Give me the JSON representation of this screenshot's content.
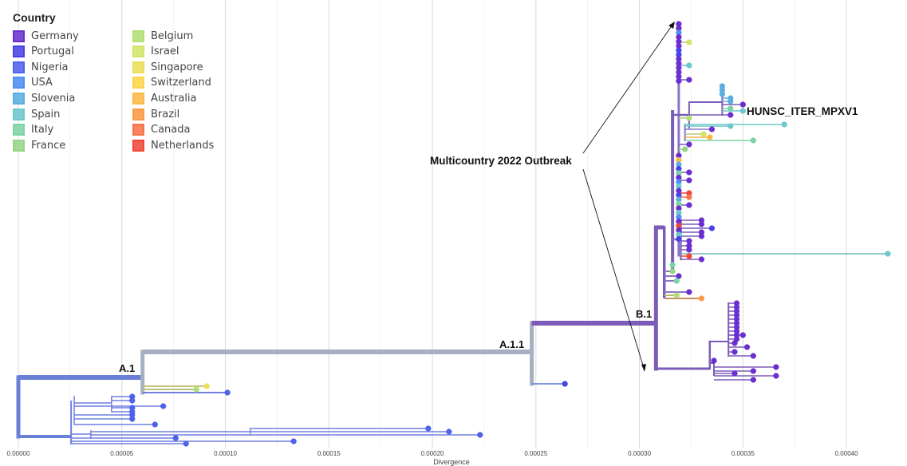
{
  "legend": {
    "title": "Country",
    "items": [
      {
        "label": "Germany",
        "color": "#6a2fd0"
      },
      {
        "label": "Portugal",
        "color": "#4a42e6"
      },
      {
        "label": "Nigeria",
        "color": "#4f62ea"
      },
      {
        "label": "USA",
        "color": "#4f8ef2"
      },
      {
        "label": "Slovenia",
        "color": "#5aaee0"
      },
      {
        "label": "Spain",
        "color": "#6cc8cc"
      },
      {
        "label": "Italy",
        "color": "#7ed3a6"
      },
      {
        "label": "France",
        "color": "#95d586"
      },
      {
        "label": "Belgium",
        "color": "#b2df74"
      },
      {
        "label": "Israel",
        "color": "#d3e467"
      },
      {
        "label": "Singapore",
        "color": "#eadf5a"
      },
      {
        "label": "Switzerland",
        "color": "#fbd549"
      },
      {
        "label": "Australia",
        "color": "#fbb946"
      },
      {
        "label": "Brazil",
        "color": "#f99a45"
      },
      {
        "label": "Canada",
        "color": "#f67346"
      },
      {
        "label": "Netherlands",
        "color": "#f04738"
      }
    ]
  },
  "chart_data": {
    "type": "phylogenetic-tree",
    "xlabel": "Divergence",
    "x_ticks": [
      "0.00000",
      "0.00005",
      "0.00010",
      "0.00015",
      "0.00020",
      "0.00025",
      "0.00030",
      "0.00035",
      "0.00040"
    ],
    "xlim": [
      0,
      0.00042
    ],
    "clades": [
      {
        "label": "A.1",
        "divergence": 6e-05
      },
      {
        "label": "A.1.1",
        "divergence": 0.000248
      },
      {
        "label": "B.1",
        "divergence": 0.000308
      }
    ],
    "annotations": {
      "outbreak": "Multicountry 2022 Outbreak",
      "highlight_sample": "HUNSC_ITER_MPXV1"
    },
    "tips": [
      {
        "country": "Germany",
        "divergence": 0.000336
      },
      {
        "country": "Germany",
        "divergence": 0.000366
      },
      {
        "country": "Spain",
        "divergence": 0.00042
      },
      {
        "country": "Spain",
        "divergence": 0.00037
      },
      {
        "country": "Italy",
        "divergence": 0.000355
      },
      {
        "country": "Brazil",
        "divergence": 0.00033
      },
      {
        "country": "Portugal",
        "divergence": 0.000264
      },
      {
        "country": "Nigeria",
        "divergence": 0.000223
      },
      {
        "country": "Nigeria",
        "divergence": 0.000208
      },
      {
        "country": "Nigeria",
        "divergence": 0.000198
      },
      {
        "country": "Nigeria",
        "divergence": 0.000133
      },
      {
        "country": "Nigeria",
        "divergence": 0.000101
      },
      {
        "country": "Singapore",
        "divergence": 9.1e-05
      },
      {
        "country": "Belgium",
        "divergence": 8.6e-05
      }
    ]
  }
}
